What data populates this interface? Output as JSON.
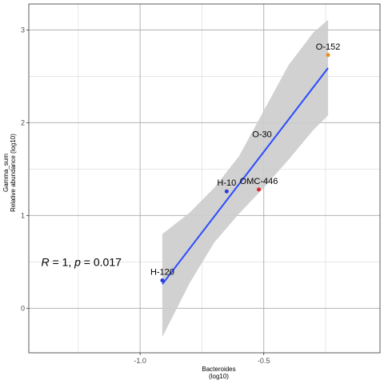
{
  "chart_data": {
    "type": "scatter",
    "title": "",
    "xlabel": [
      "Bacteroides",
      "(log10)"
    ],
    "ylabel": [
      "Gamma_sum",
      "Relative abundance (log10)"
    ],
    "xlim": [
      -1.45,
      -0.03
    ],
    "ylim": [
      -0.48,
      3.28
    ],
    "x_ticks": [
      -1.0,
      -0.5
    ],
    "x_tick_labels": [
      "-1.0",
      "-0.5"
    ],
    "y_ticks": [
      0,
      1,
      2,
      3
    ],
    "y_tick_labels": [
      "0",
      "1",
      "2",
      "3"
    ],
    "grid": true,
    "points": [
      {
        "label": "H-120",
        "x": -0.91,
        "y": 0.3,
        "color": "#2a3bd6"
      },
      {
        "label": "H-10",
        "x": -0.65,
        "y": 1.26,
        "color": "#2a3bd6"
      },
      {
        "label": "OMC-446",
        "x": -0.52,
        "y": 1.28,
        "color": "#e4252a"
      },
      {
        "label": "O-30",
        "x": -0.52,
        "y": 1.88,
        "color": "#000000"
      },
      {
        "label": "O-152",
        "x": -0.24,
        "y": 2.73,
        "color": "#e8901c"
      }
    ],
    "regression": {
      "x": [
        -0.91,
        -0.24
      ],
      "y": [
        0.26,
        2.59
      ],
      "color": "#2a4bff"
    },
    "confidence_band": {
      "x": [
        -0.91,
        -0.8,
        -0.7,
        -0.6,
        -0.5,
        -0.4,
        -0.3,
        -0.24
      ],
      "upper": [
        0.8,
        1.03,
        1.3,
        1.64,
        2.13,
        2.62,
        2.97,
        3.11
      ],
      "lower": [
        -0.31,
        0.27,
        0.71,
        1.02,
        1.3,
        1.6,
        1.92,
        2.08
      ],
      "color": "#cccccc"
    },
    "annotation": {
      "text_r": "R",
      "text_rest": " = 1, ",
      "text_p": "p",
      "text_value": " = 0.017",
      "x": -1.4,
      "y": 0.5
    }
  },
  "colors": {
    "background": "#ffffff",
    "grid_major": "#b3b3b3",
    "grid_minor": "#d9d9d9",
    "border": "#333333"
  }
}
